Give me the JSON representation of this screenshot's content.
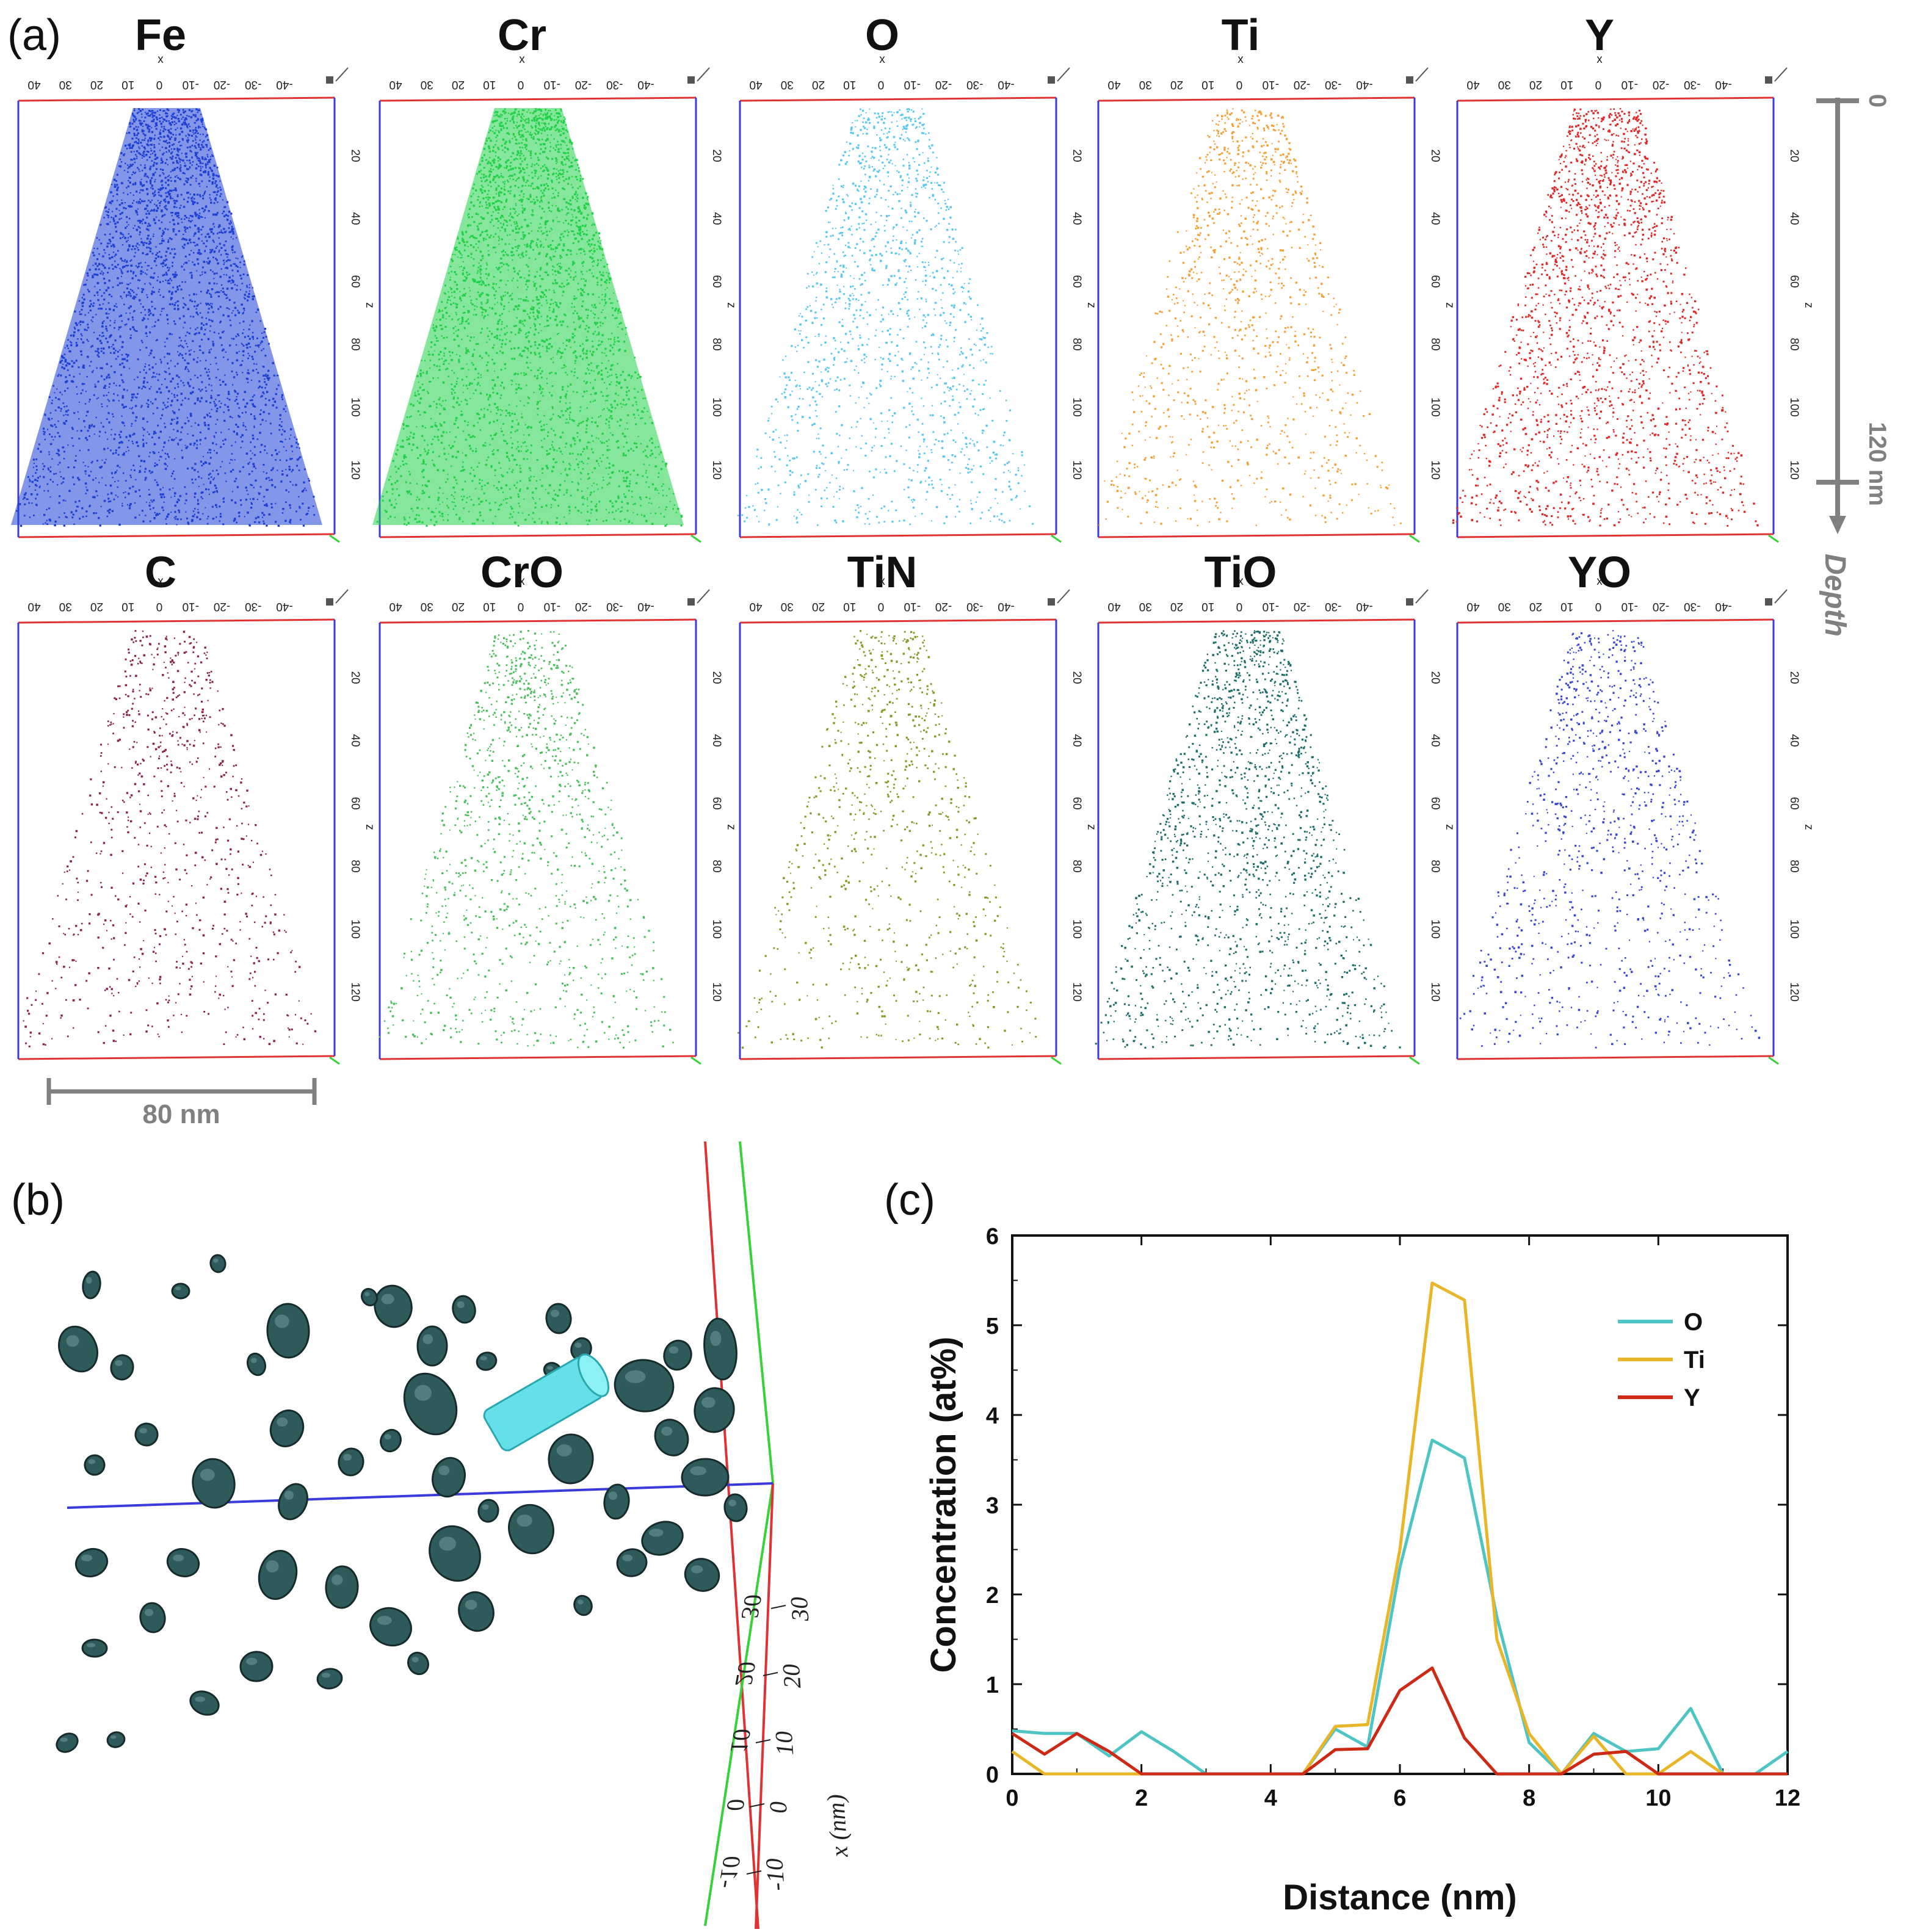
{
  "panel_labels": {
    "a": "(a)",
    "b": "(b)",
    "c": "(c)"
  },
  "maps": {
    "row1": [
      {
        "name": "Fe",
        "color": "#1f3fd6",
        "density": 1.0
      },
      {
        "name": "Cr",
        "color": "#22d14a",
        "density": 1.0
      },
      {
        "name": "O",
        "color": "#5cc8ec",
        "density": 0.45
      },
      {
        "name": "Ti",
        "color": "#f2a23a",
        "density": 0.35
      },
      {
        "name": "Y",
        "color": "#e02a2a",
        "density": 0.6
      }
    ],
    "row2": [
      {
        "name": "C",
        "color": "#8a2846",
        "density": 0.25
      },
      {
        "name": "CrO",
        "color": "#4dbf5e",
        "density": 0.35
      },
      {
        "name": "TiN",
        "color": "#8a9a2a",
        "density": 0.25
      },
      {
        "name": "TiO",
        "color": "#1f6e6a",
        "density": 0.5
      },
      {
        "name": "YO",
        "color": "#3b46d6",
        "density": 0.3
      }
    ],
    "x_ticks": [
      "40",
      "30",
      "20",
      "10",
      "0",
      "-10",
      "-20",
      "-30",
      "-40"
    ],
    "x_axis_letter": "x",
    "z_ticks": [
      "20",
      "40",
      "60",
      "80",
      "100",
      "120"
    ],
    "z_axis_letter": "z",
    "scale_bar_label": "80 nm",
    "depth_top": "0",
    "depth_bottom": "120 nm",
    "depth_label": "Depth"
  },
  "panel_b": {
    "axis_ticks": [
      "-10",
      "0",
      "10",
      "20",
      "30"
    ],
    "axis_label": "x (nm)",
    "mirrored_ticks": [
      "-10",
      "0",
      "10",
      "20",
      "30"
    ]
  },
  "chart_data": {
    "type": "line",
    "title": "",
    "xlabel": "Distance (nm)",
    "ylabel": "Concentration (at%)",
    "xlim": [
      0,
      12
    ],
    "ylim": [
      0,
      6
    ],
    "x_ticks": [
      0,
      2,
      4,
      6,
      8,
      10,
      12
    ],
    "y_ticks": [
      0,
      1,
      2,
      3,
      4,
      5,
      6
    ],
    "legend_position": "top-right",
    "series": [
      {
        "name": "O",
        "color": "#4fc4c4",
        "x": [
          0,
          0.5,
          1,
          1.5,
          2,
          2.5,
          3,
          3.5,
          4,
          4.5,
          5,
          5.5,
          6,
          6.5,
          7,
          7.5,
          8,
          8.5,
          9,
          9.5,
          10,
          10.5,
          11,
          11.5,
          12
        ],
        "values": [
          0.48,
          0.45,
          0.45,
          0.2,
          0.47,
          0.25,
          0,
          0,
          0,
          0,
          0.5,
          0.3,
          2.3,
          3.72,
          3.52,
          1.75,
          0.35,
          0,
          0.45,
          0.25,
          0.28,
          0.73,
          0,
          0,
          0.25
        ]
      },
      {
        "name": "Ti",
        "color": "#e9b62a",
        "x": [
          0,
          0.5,
          1,
          1.5,
          2,
          2.5,
          3,
          3.5,
          4,
          4.5,
          5,
          5.5,
          6,
          6.5,
          7,
          7.5,
          8,
          8.5,
          9,
          9.5,
          10,
          10.5,
          11,
          11.5,
          12
        ],
        "values": [
          0.25,
          0,
          0,
          0,
          0,
          0,
          0,
          0,
          0,
          0,
          0.53,
          0.55,
          2.5,
          5.47,
          5.28,
          1.5,
          0.45,
          0,
          0.42,
          0,
          0,
          0.25,
          0,
          0,
          0
        ]
      },
      {
        "name": "Y",
        "color": "#cc2a14",
        "x": [
          0,
          0.5,
          1,
          1.5,
          2,
          2.5,
          3,
          3.5,
          4,
          4.5,
          5,
          5.5,
          6,
          6.5,
          7,
          7.5,
          8,
          8.5,
          9,
          9.5,
          10,
          10.5,
          11,
          11.5,
          12
        ],
        "values": [
          0.45,
          0.22,
          0.45,
          0.25,
          0,
          0,
          0,
          0,
          0,
          0,
          0.27,
          0.28,
          0.93,
          1.18,
          0.4,
          0,
          0,
          0,
          0.22,
          0.25,
          0,
          0,
          0,
          0,
          0
        ]
      }
    ]
  }
}
